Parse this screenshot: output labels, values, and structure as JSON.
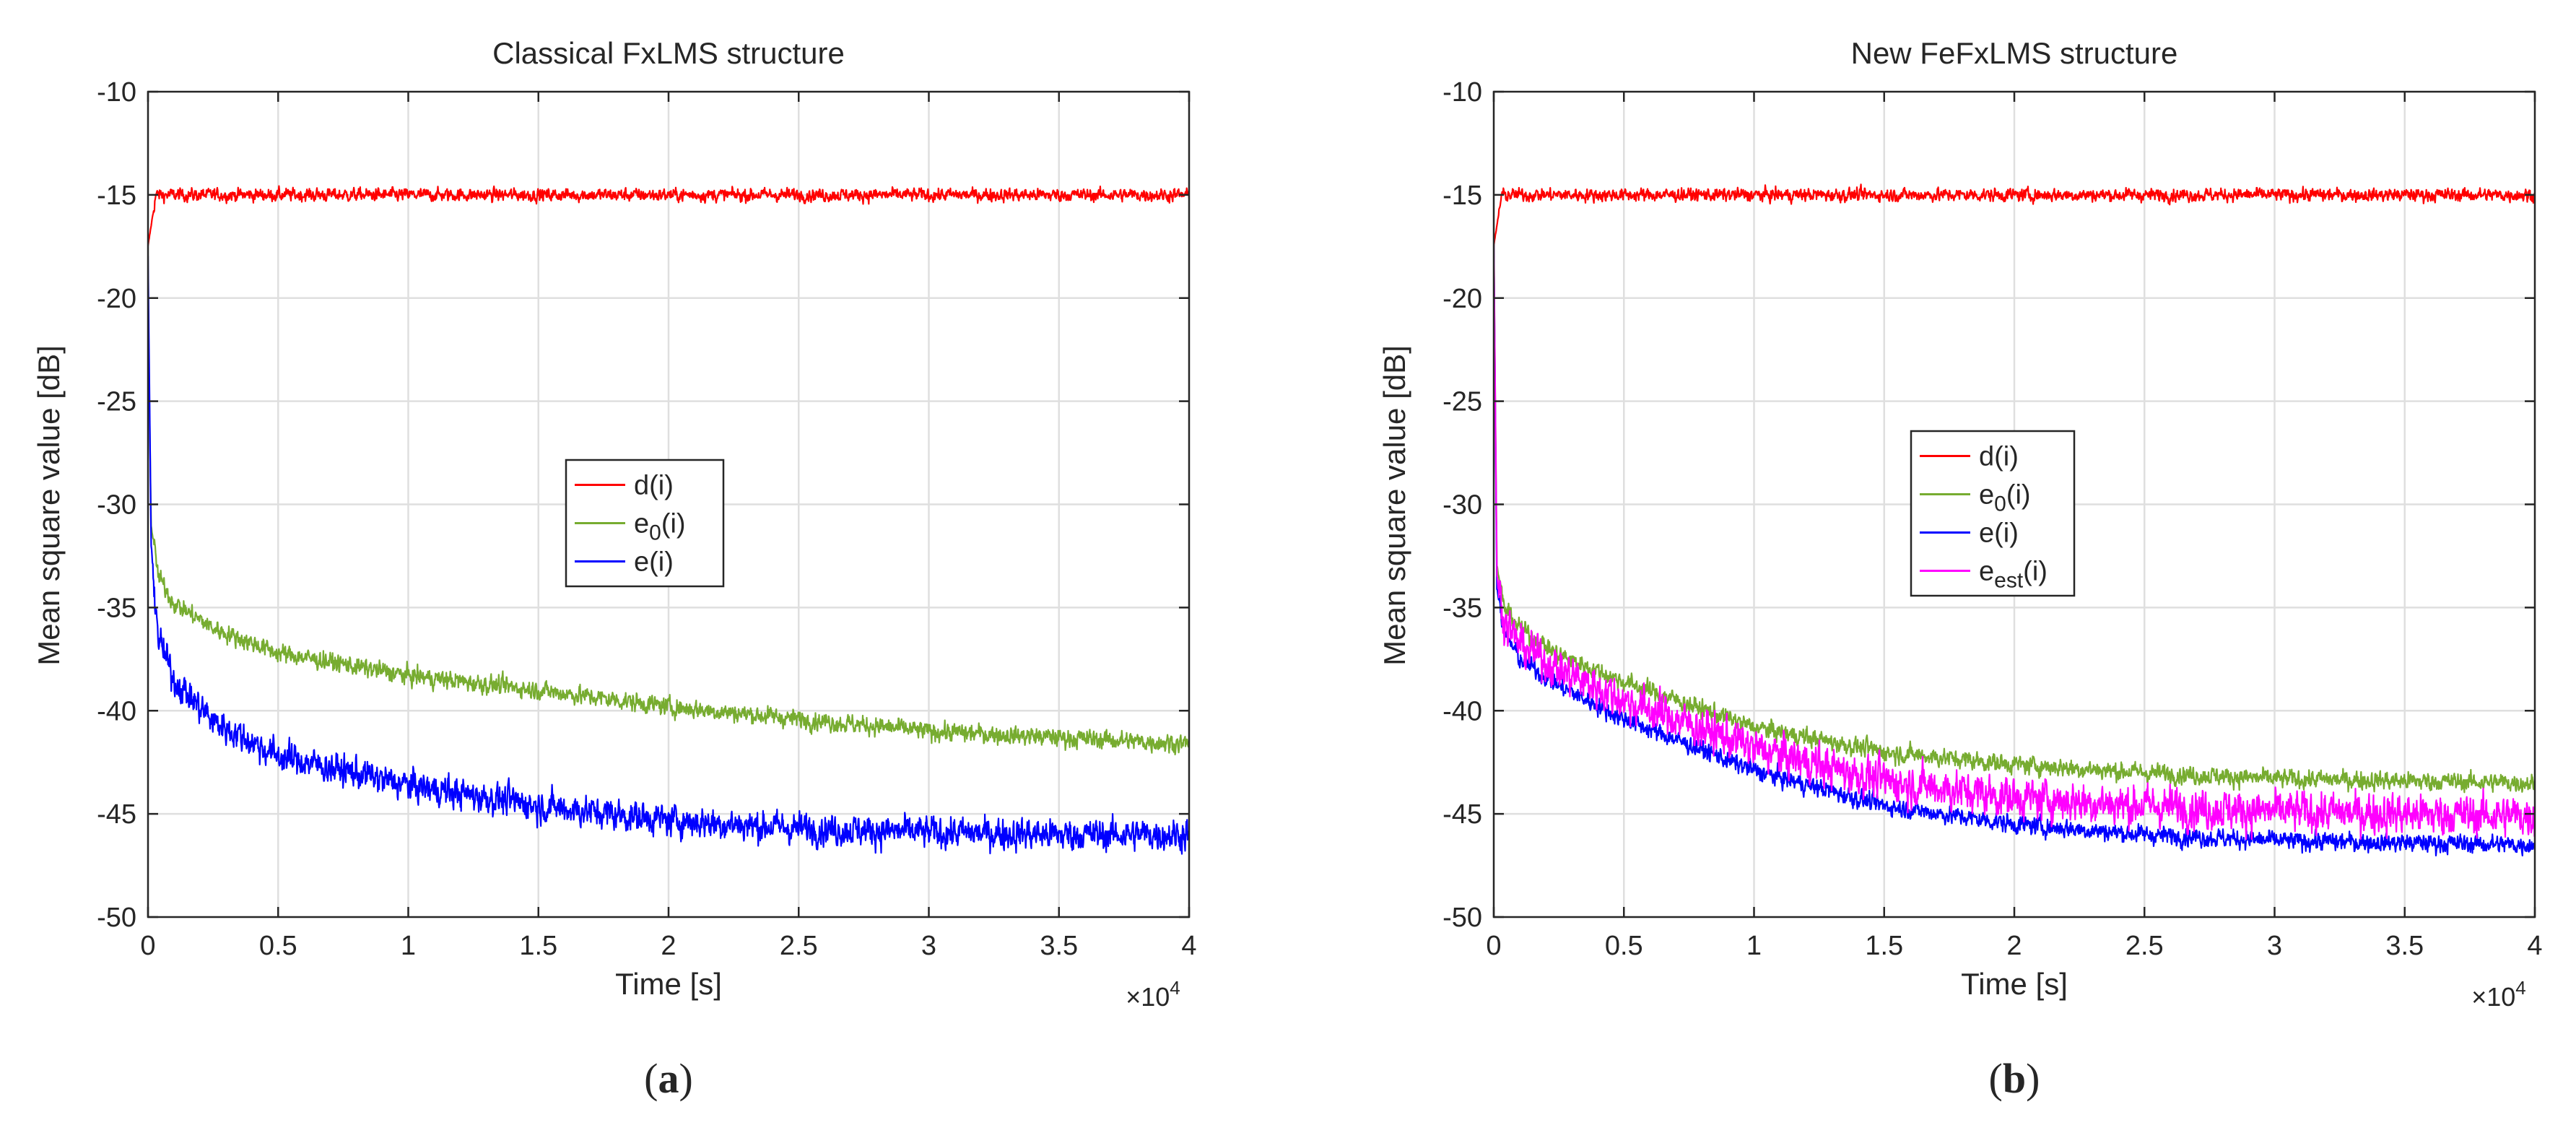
{
  "chart_data": [
    {
      "type": "line",
      "title": "Classical FxLMS structure",
      "xlabel": "Time [s]",
      "ylabel": "Mean square value [dB]",
      "xlim": [
        0,
        40000
      ],
      "ylim": [
        -50,
        -10
      ],
      "x_exponent_label": "×10",
      "x_exponent": "4",
      "xticks": [
        0,
        5000,
        10000,
        15000,
        20000,
        25000,
        30000,
        35000,
        40000
      ],
      "xtick_labels": [
        "0",
        "0.5",
        "1",
        "1.5",
        "2",
        "2.5",
        "3",
        "3.5",
        "4"
      ],
      "yticks": [
        -50,
        -45,
        -40,
        -35,
        -30,
        -25,
        -20,
        -15,
        -10
      ],
      "ytick_labels": [
        "-50",
        "-45",
        "-40",
        "-35",
        "-30",
        "-25",
        "-20",
        "-15",
        "-10"
      ],
      "grid": true,
      "legend_position": "center",
      "panel_label": "(a)",
      "series": [
        {
          "name": "d(i)",
          "base": "d",
          "sub": "",
          "suffix": "(i)",
          "color": "#ff0000",
          "noise": 0.35,
          "x": [
            0,
            300,
            1000,
            40000
          ],
          "y": [
            -17.5,
            -15.0,
            -15.0,
            -15.0
          ]
        },
        {
          "name": "e0(i)",
          "base": "e",
          "sub": "0",
          "suffix": "(i)",
          "color": "#77ac30",
          "noise": 0.5,
          "x": [
            0,
            120,
            400,
            1000,
            2500,
            5000,
            10000,
            15000,
            20000,
            25000,
            30000,
            35000,
            40000
          ],
          "y": [
            -20.0,
            -31.0,
            -33.5,
            -34.8,
            -36.0,
            -37.2,
            -38.3,
            -39.0,
            -39.8,
            -40.4,
            -41.0,
            -41.3,
            -41.6
          ]
        },
        {
          "name": "e(i)",
          "base": "e",
          "sub": "",
          "suffix": "(i)",
          "color": "#0000ff",
          "noise": 0.85,
          "x": [
            0,
            120,
            400,
            1000,
            2500,
            5000,
            10000,
            15000,
            20000,
            25000,
            30000,
            35000,
            40000
          ],
          "y": [
            -18.0,
            -32.0,
            -36.5,
            -38.5,
            -40.5,
            -42.2,
            -43.6,
            -44.6,
            -45.3,
            -45.7,
            -45.9,
            -46.0,
            -46.0
          ]
        }
      ]
    },
    {
      "type": "line",
      "title": "New FeFxLMS structure",
      "xlabel": "Time [s]",
      "ylabel": "Mean square value [dB]",
      "xlim": [
        0,
        40000
      ],
      "ylim": [
        -50,
        -10
      ],
      "x_exponent_label": "×10",
      "x_exponent": "4",
      "xticks": [
        0,
        5000,
        10000,
        15000,
        20000,
        25000,
        30000,
        35000,
        40000
      ],
      "xtick_labels": [
        "0",
        "0.5",
        "1",
        "1.5",
        "2",
        "2.5",
        "3",
        "3.5",
        "4"
      ],
      "yticks": [
        -50,
        -45,
        -40,
        -35,
        -30,
        -25,
        -20,
        -15,
        -10
      ],
      "ytick_labels": [
        "-50",
        "-45",
        "-40",
        "-35",
        "-30",
        "-25",
        "-20",
        "-15",
        "-10"
      ],
      "grid": true,
      "legend_position": "center",
      "panel_label": "(b)",
      "series": [
        {
          "name": "d(i)",
          "base": "d",
          "sub": "",
          "suffix": "(i)",
          "color": "#ff0000",
          "noise": 0.35,
          "x": [
            0,
            300,
            1000,
            40000
          ],
          "y": [
            -17.5,
            -15.0,
            -15.0,
            -15.0
          ]
        },
        {
          "name": "e0(i)",
          "base": "e",
          "sub": "0",
          "suffix": "(i)",
          "color": "#77ac30",
          "noise": 0.5,
          "x": [
            0,
            120,
            400,
            1000,
            2500,
            5000,
            10000,
            15000,
            20000,
            25000,
            30000,
            35000,
            40000
          ],
          "y": [
            -17.0,
            -33.0,
            -35.0,
            -36.0,
            -37.3,
            -38.6,
            -40.8,
            -42.0,
            -42.6,
            -43.0,
            -43.3,
            -43.4,
            -43.5
          ]
        },
        {
          "name": "e(i)",
          "base": "e",
          "sub": "",
          "suffix": "(i)",
          "color": "#0000ff",
          "noise": 0.5,
          "x": [
            0,
            120,
            400,
            1000,
            2500,
            5000,
            10000,
            15000,
            20000,
            25000,
            30000,
            35000,
            40000
          ],
          "y": [
            -17.5,
            -34.0,
            -36.2,
            -37.5,
            -38.8,
            -40.4,
            -42.9,
            -44.6,
            -45.5,
            -46.0,
            -46.3,
            -46.4,
            -46.5
          ]
        },
        {
          "name": "eest(i)",
          "base": "e",
          "sub": "est",
          "suffix": "(i)",
          "color": "#ff00ff",
          "noise": 1.1,
          "x": [
            0,
            120,
            400,
            1000,
            2500,
            5000,
            10000,
            15000,
            20000,
            25000,
            30000,
            35000,
            40000
          ],
          "y": [
            -17.0,
            -33.5,
            -35.6,
            -36.8,
            -38.0,
            -39.5,
            -41.8,
            -43.4,
            -44.2,
            -44.6,
            -44.9,
            -45.0,
            -45.1
          ]
        }
      ]
    }
  ]
}
